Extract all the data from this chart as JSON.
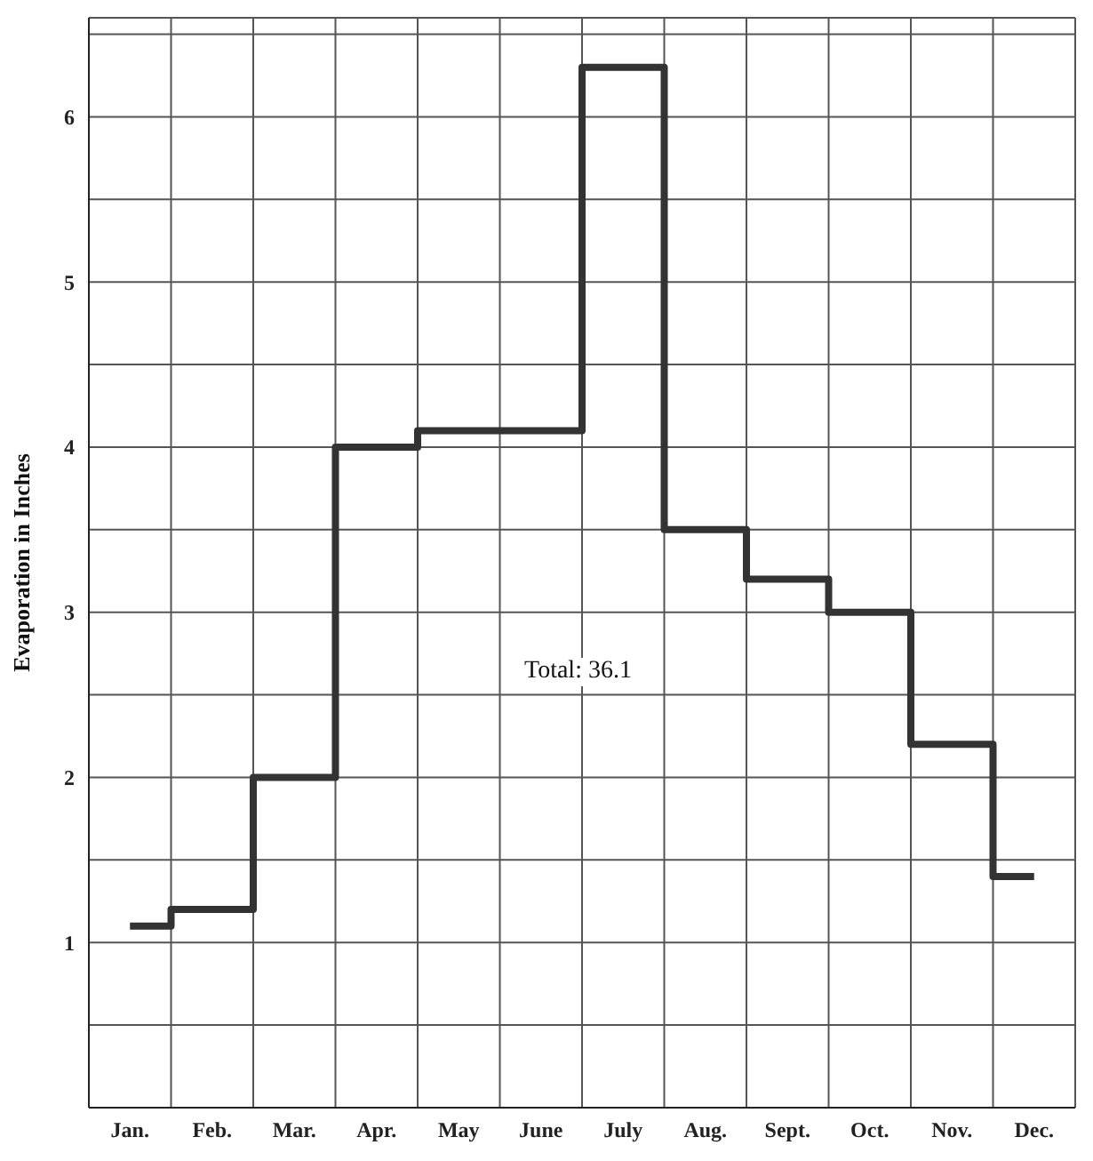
{
  "chart_data": {
    "type": "step",
    "ylabel": "Evaporation in Inches",
    "categories": [
      "Jan.",
      "Feb.",
      "Mar.",
      "Apr.",
      "May",
      "June",
      "July",
      "Aug.",
      "Sept.",
      "Oct.",
      "Nov.",
      "Dec."
    ],
    "series": [
      {
        "color": "#333333",
        "values": [
          1.1,
          1.2,
          2.0,
          4.0,
          4.1,
          4.1,
          6.3,
          3.5,
          3.2,
          3.0,
          2.2,
          1.4
        ]
      }
    ],
    "ylim": [
      0,
      6.6
    ],
    "yticks": [
      {
        "value": 0.5,
        "label": null
      },
      1,
      {
        "value": 1.5,
        "label": null
      },
      2,
      {
        "value": 2.5,
        "label": null
      },
      3,
      {
        "value": 3.5,
        "label": null
      },
      4,
      {
        "value": 4.5,
        "label": null
      },
      5,
      {
        "value": 5.5,
        "label": null
      },
      6,
      {
        "value": 6.5,
        "label": null
      }
    ],
    "grid": true,
    "marker": "none",
    "line_style": "solid",
    "annotations": [
      "Total: 36.1"
    ]
  }
}
